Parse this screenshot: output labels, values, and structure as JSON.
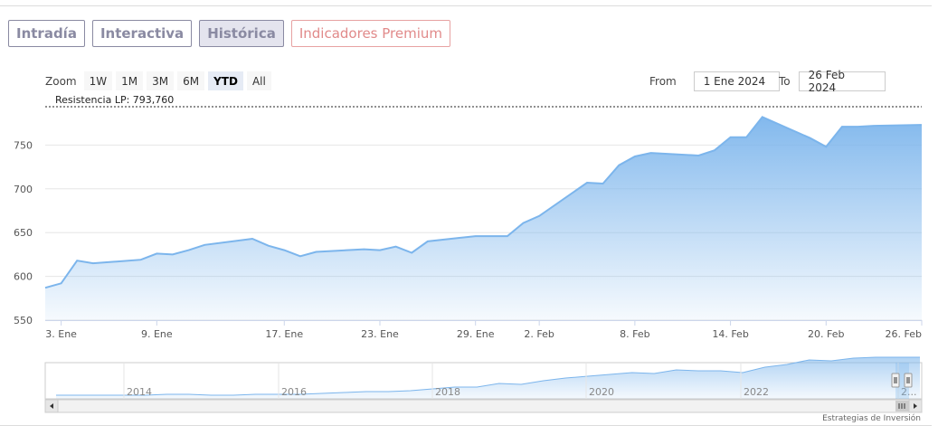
{
  "tabs": [
    "Intradía",
    "Interactiva",
    "Histórica",
    "Indicadores Premium"
  ],
  "active_tab": "Histórica",
  "zoom": {
    "label": "Zoom",
    "buttons": [
      "1W",
      "1M",
      "3M",
      "6M",
      "YTD",
      "All"
    ],
    "selected": "YTD"
  },
  "range": {
    "from_label": "From",
    "from_value": "1 Ene 2024",
    "to_label": "To",
    "to_value": "26 Feb 2024"
  },
  "credit": "Estrategias de Inversión",
  "colors": {
    "line": "#7cb5ec",
    "area_top": "#7cb5ec",
    "tab_text": "#8a8aa2",
    "premium": "#e18a8a"
  },
  "navigator": {
    "year_labels": [
      "2014",
      "2016",
      "2018",
      "2020",
      "2022",
      "2..."
    ]
  },
  "chart_data": {
    "type": "area",
    "title": "",
    "xlabel": "",
    "ylabel": "",
    "ylim": [
      550,
      800
    ],
    "yticks": [
      550,
      600,
      650,
      700,
      750
    ],
    "grid": true,
    "xtick_labels": [
      {
        "label": "3. Ene",
        "x": "2024-01-03"
      },
      {
        "label": "9. Ene",
        "x": "2024-01-09"
      },
      {
        "label": "17. Ene",
        "x": "2024-01-17"
      },
      {
        "label": "23. Ene",
        "x": "2024-01-23"
      },
      {
        "label": "29. Ene",
        "x": "2024-01-29"
      },
      {
        "label": "2. Feb",
        "x": "2024-02-02"
      },
      {
        "label": "8. Feb",
        "x": "2024-02-08"
      },
      {
        "label": "14. Feb",
        "x": "2024-02-14"
      },
      {
        "label": "20. Feb",
        "x": "2024-02-20"
      },
      {
        "label": "26. Feb",
        "x": "2024-02-26"
      }
    ],
    "plot_lines": [
      {
        "label": "Resistencia LP: 793,760",
        "value": 793.76,
        "style": "dashed"
      }
    ],
    "series": [
      {
        "points": [
          [
            "2024-01-02",
            587
          ],
          [
            "2024-01-03",
            592
          ],
          [
            "2024-01-04",
            618
          ],
          [
            "2024-01-05",
            615
          ],
          [
            "2024-01-08",
            619
          ],
          [
            "2024-01-09",
            626
          ],
          [
            "2024-01-10",
            625
          ],
          [
            "2024-01-11",
            630
          ],
          [
            "2024-01-12",
            636
          ],
          [
            "2024-01-15",
            643
          ],
          [
            "2024-01-16",
            635
          ],
          [
            "2024-01-17",
            630
          ],
          [
            "2024-01-18",
            623
          ],
          [
            "2024-01-19",
            628
          ],
          [
            "2024-01-22",
            631
          ],
          [
            "2024-01-23",
            630
          ],
          [
            "2024-01-24",
            634
          ],
          [
            "2024-01-25",
            627
          ],
          [
            "2024-01-26",
            640
          ],
          [
            "2024-01-29",
            646
          ],
          [
            "2024-01-30",
            646
          ],
          [
            "2024-01-31",
            646
          ],
          [
            "2024-02-01",
            661
          ],
          [
            "2024-02-02",
            669
          ],
          [
            "2024-02-05",
            707
          ],
          [
            "2024-02-06",
            706
          ],
          [
            "2024-02-07",
            727
          ],
          [
            "2024-02-08",
            737
          ],
          [
            "2024-02-09",
            741
          ],
          [
            "2024-02-12",
            738
          ],
          [
            "2024-02-13",
            744
          ],
          [
            "2024-02-14",
            759
          ],
          [
            "2024-02-15",
            759
          ],
          [
            "2024-02-16",
            782
          ],
          [
            "2024-02-19",
            758
          ],
          [
            "2024-02-20",
            748
          ],
          [
            "2024-02-21",
            771
          ],
          [
            "2024-02-22",
            771
          ],
          [
            "2024-02-23",
            772
          ],
          [
            "2024-02-26",
            773
          ]
        ]
      }
    ]
  }
}
